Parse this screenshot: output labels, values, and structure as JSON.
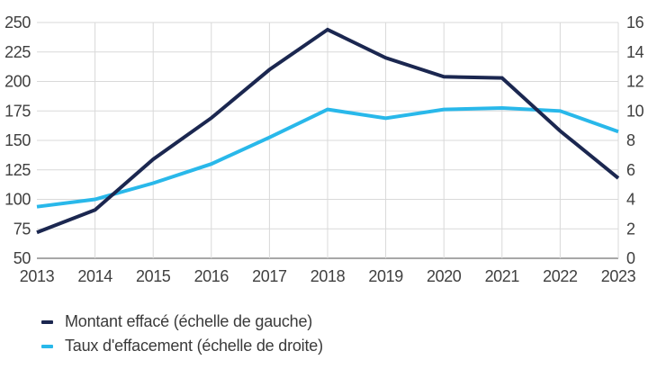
{
  "chart_data": {
    "type": "line",
    "x": [
      2013,
      2014,
      2015,
      2016,
      2017,
      2018,
      2019,
      2020,
      2021,
      2022,
      2023
    ],
    "series": [
      {
        "name": "Montant effacé (échelle de gauche)",
        "axis": "left",
        "color": "#1b2750",
        "values": [
          72,
          91,
          134,
          169,
          210,
          244,
          220,
          204,
          203,
          158,
          118
        ]
      },
      {
        "name": "Taux d'effacement (échelle de droite)",
        "axis": "right",
        "color": "#29b8ea",
        "values": [
          3.5,
          4.0,
          5.1,
          6.4,
          8.2,
          10.1,
          9.5,
          10.1,
          10.2,
          10.0,
          8.6
        ]
      }
    ],
    "left_axis": {
      "min": 50,
      "max": 250,
      "step": 25,
      "ticks": [
        250,
        225,
        200,
        175,
        150,
        125,
        100,
        75,
        50
      ]
    },
    "right_axis": {
      "min": 0,
      "max": 16,
      "step": 2,
      "ticks": [
        16,
        14,
        12,
        10,
        8,
        6,
        4,
        2,
        0
      ]
    },
    "grid": true,
    "legend_position": "bottom-left",
    "colors": {
      "gridline": "#d9d9d9",
      "axis_line": "#9c9c9c",
      "tick_text": "#3f3f3f"
    }
  }
}
